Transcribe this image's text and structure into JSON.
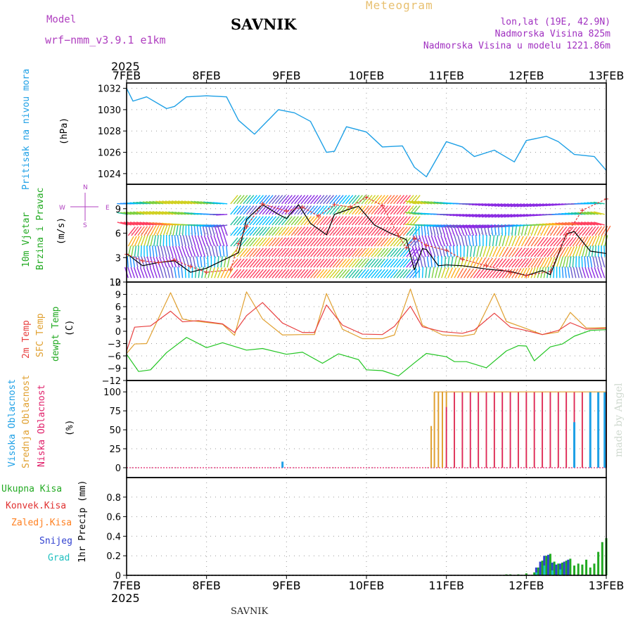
{
  "header": {
    "title": "SAVNIK",
    "meteogram": "Meteogram",
    "model_label": "Model",
    "model_name": "wrf−nmm_v3.9.1  e1km",
    "location": "lon,lat (19E, 42.9N)",
    "altitude": "Nadmorska Visina 825m",
    "model_altitude": "Nadmorska Visina u modelu 1221.86m"
  },
  "footer": {
    "title": "SAVNIK",
    "credit": "made by Angel"
  },
  "xaxis": {
    "year": "2025",
    "ticks": [
      "7FEB",
      "8FEB",
      "9FEB",
      "10FEB",
      "11FEB",
      "12FEB",
      "13FEB"
    ]
  },
  "colors": {
    "pressure": "#1ea0e6",
    "wind_speed": "#000000",
    "gust": "#e03030",
    "temp2m": "#e84040",
    "sfc_temp": "#e0a030",
    "dewpoint": "#22c522",
    "high_cloud": "#1ea0e6",
    "mid_cloud": "#e0a030",
    "low_cloud": "#e0206a",
    "total_precip": "#22aa22",
    "conv_precip": "#e03030",
    "freezing_precip": "#ff8020",
    "snow": "#3040d0",
    "graupel": "#20c0c0"
  },
  "panels": {
    "pressure": {
      "ylabel_a": "Pritisak na nivou mora",
      "ylabel_b": "(hPa)",
      "yticks": [
        "1024",
        "1026",
        "1028",
        "1030",
        "1032"
      ]
    },
    "wind": {
      "ylabel_a": "10m Vjetar",
      "ylabel_b": "Brzina i Pravac",
      "ylabel_c": "(m/s)",
      "yticks": [
        "0",
        "3",
        "6",
        "9"
      ],
      "compass": {
        "n": "N",
        "s": "S",
        "e": "E",
        "w": "W"
      }
    },
    "temp": {
      "ylabel_a": "2m Temp",
      "ylabel_b": "SFC Temp",
      "ylabel_c": "dewpt Temp",
      "ylabel_d": "(C)",
      "yticks": [
        "−12",
        "−9",
        "−6",
        "−3",
        "0",
        "3",
        "6",
        "9",
        "12"
      ]
    },
    "cloud": {
      "ylabel_a": "Visoka Oblacnost",
      "ylabel_b": "Srednja Oblacnost",
      "ylabel_c": "Niska Oblacnost",
      "ylabel_d": "(%)",
      "yticks": [
        "0",
        "25",
        "50",
        "75",
        "100"
      ]
    },
    "precip": {
      "legend": [
        "Ukupna Kisa",
        "Konvek.Kisa",
        "Zaledj.Kisa",
        "Snijeg",
        "Grad"
      ],
      "ylabel": "1hr Precip (mm)",
      "yticks": [
        "0",
        "0.2",
        "0.4",
        "0.6",
        "0.8"
      ]
    }
  },
  "chart_data": [
    {
      "type": "line",
      "title": "Pritisak na nivou mora",
      "ylabel": "(hPa)",
      "ylim": [
        1023,
        1032.5
      ],
      "x_units": "days since 7FEB 00h",
      "series": [
        {
          "name": "Pritisak na nivou mora",
          "x": [
            0,
            0.08,
            0.25,
            0.5,
            0.6,
            0.75,
            1.0,
            1.25,
            1.4,
            1.6,
            1.9,
            2.1,
            2.3,
            2.5,
            2.6,
            2.75,
            3.0,
            3.2,
            3.45,
            3.6,
            3.75,
            4.0,
            4.2,
            4.35,
            4.6,
            4.85,
            5.0,
            5.25,
            5.4,
            5.6,
            5.85,
            6.0
          ],
          "values": [
            1032,
            1030.8,
            1031.2,
            1030.1,
            1030.3,
            1031.2,
            1031.3,
            1031.2,
            1029,
            1027.7,
            1030,
            1029.7,
            1028.9,
            1026,
            1026.1,
            1028.4,
            1027.9,
            1026.5,
            1026.6,
            1024.6,
            1023.7,
            1027,
            1026.5,
            1025.6,
            1026.2,
            1025.1,
            1027.1,
            1027.5,
            1027,
            1025.8,
            1025.6,
            1024.3
          ]
        }
      ]
    },
    {
      "type": "line",
      "title": "10m Vjetar Brzina i Pravac",
      "ylabel": "(m/s)",
      "ylim": [
        0,
        12
      ],
      "x_units": "days since 7FEB 00h",
      "series": [
        {
          "name": "wind_speed",
          "x": [
            0,
            0.2,
            0.4,
            0.6,
            0.8,
            1.0,
            1.4,
            1.5,
            1.7,
            1.9,
            2.0,
            2.15,
            2.3,
            2.5,
            2.6,
            2.8,
            2.9,
            3.1,
            3.3,
            3.5,
            3.6,
            3.7,
            3.75,
            3.9,
            4.0,
            4.2,
            4.5,
            4.8,
            5.0,
            5.2,
            5.3,
            5.5,
            5.6,
            5.8,
            6.0
          ],
          "values": [
            3.5,
            2,
            2.4,
            2.6,
            1.2,
            1.7,
            3.6,
            7.7,
            9.5,
            8.3,
            7.8,
            9.5,
            7.2,
            5.8,
            8.3,
            9,
            9.3,
            7,
            6,
            5.2,
            1.5,
            4.1,
            4,
            2,
            2.1,
            2,
            1.6,
            1.3,
            0.8,
            1.4,
            0.9,
            5.9,
            6.2,
            3.8,
            3.5
          ]
        },
        {
          "name": "gust",
          "x": [
            0,
            0.2,
            0.4,
            0.6,
            0.8,
            1.0,
            1.3,
            1.4,
            1.5,
            1.7,
            2.0,
            2.2,
            2.4,
            2.6,
            2.8,
            3.0,
            3.2,
            3.4,
            3.5,
            3.6,
            3.75,
            4.0,
            4.2,
            4.5,
            4.8,
            5.0,
            5.3,
            5.5,
            5.7,
            6.0
          ],
          "values": [
            3.4,
            2.6,
            2.4,
            2.7,
            1.9,
            1.2,
            1.5,
            4.7,
            6.8,
            9.6,
            8.7,
            9.2,
            8.1,
            9.5,
            9.2,
            10.4,
            9.4,
            5.7,
            4.2,
            5.4,
            4.5,
            3.9,
            2.8,
            2,
            1.2,
            0.8,
            1.3,
            5.8,
            8.8,
            10.2
          ]
        }
      ]
    },
    {
      "type": "line",
      "title": "2m Temp / SFC Temp / dewpt Temp",
      "ylabel": "(C)",
      "ylim": [
        -12,
        12
      ],
      "x_units": "days since 7FEB 00h",
      "series": [
        {
          "name": "2m Temp",
          "x": [
            0,
            0.1,
            0.3,
            0.55,
            0.7,
            0.9,
            1.2,
            1.35,
            1.5,
            1.7,
            1.95,
            2.2,
            2.35,
            2.5,
            2.7,
            2.95,
            3.2,
            3.35,
            3.55,
            3.7,
            3.95,
            4.2,
            4.35,
            4.6,
            4.8,
            4.95,
            5.2,
            5.4,
            5.55,
            5.75,
            6.0
          ],
          "values": [
            -4.8,
            1,
            1.3,
            4.9,
            2.3,
            2.6,
            1.8,
            -0.3,
            3.8,
            7,
            2,
            -0.3,
            -0.3,
            6.4,
            1.5,
            -0.7,
            -0.8,
            1.2,
            6.1,
            1.1,
            -0.1,
            -0.5,
            0.3,
            4.4,
            1,
            0.4,
            -0.8,
            0.2,
            2.1,
            0.5,
            0.7
          ]
        },
        {
          "name": "SFC Temp",
          "x": [
            0,
            0.1,
            0.25,
            0.55,
            0.7,
            0.8,
            1.2,
            1.35,
            1.5,
            1.7,
            1.95,
            2.2,
            2.35,
            2.5,
            2.7,
            2.95,
            3.2,
            3.35,
            3.55,
            3.7,
            3.95,
            4.2,
            4.35,
            4.6,
            4.75,
            4.95,
            5.2,
            5.4,
            5.55,
            5.75,
            6.0
          ],
          "values": [
            -5.4,
            -3.1,
            -3,
            9.4,
            3,
            2.6,
            1.7,
            -1,
            9.6,
            3,
            -0.9,
            -0.8,
            -0.8,
            9.2,
            0.5,
            -1.8,
            -1.8,
            -0.9,
            10.3,
            1.5,
            -0.9,
            -1.2,
            -0.7,
            9.2,
            2.4,
            1,
            -0.8,
            -0.2,
            4.6,
            0.8,
            0.9
          ]
        },
        {
          "name": "dewpt Temp",
          "x": [
            0,
            0.15,
            0.3,
            0.5,
            0.75,
            1.0,
            1.2,
            1.5,
            1.7,
            2.0,
            2.2,
            2.45,
            2.65,
            2.9,
            3.0,
            3.2,
            3.4,
            3.6,
            3.75,
            4.0,
            4.1,
            4.25,
            4.5,
            4.75,
            4.9,
            5.0,
            5.1,
            5.3,
            5.45,
            5.6,
            5.8,
            6.0
          ],
          "values": [
            -5.6,
            -9.8,
            -9.4,
            -5.2,
            -1.5,
            -4,
            -2.8,
            -4.6,
            -4.2,
            -5.6,
            -5.1,
            -7.8,
            -5.5,
            -6.9,
            -9.4,
            -9.6,
            -10.9,
            -7.7,
            -5.4,
            -6.2,
            -7.4,
            -7.4,
            -8.9,
            -4.8,
            -3.5,
            -3.6,
            -7.2,
            -3.8,
            -3.1,
            -1.2,
            0.2,
            0.4
          ]
        }
      ]
    },
    {
      "type": "bar",
      "title": "Visoka / Srednja / Niska Oblacnost",
      "ylabel": "(%)",
      "ylim": [
        0,
        100
      ],
      "x_units": "days since 7FEB 00h",
      "notes_only_visual": "Many hourly bars near 100% after 10FEB 19h",
      "series": [
        {
          "name": "Visoka Oblacnost",
          "x": [
            1.95,
            5.6,
            5.8,
            5.9,
            5.98
          ],
          "values": [
            8,
            60,
            100,
            100,
            100
          ]
        },
        {
          "name": "Srednja Oblacnost",
          "x": [
            3.81,
            3.85,
            3.9,
            3.95,
            4.0,
            4.1,
            4.2,
            4.3,
            4.4,
            4.5,
            4.6,
            4.7,
            4.8,
            4.9,
            5.0,
            5.1,
            5.2,
            5.3,
            5.4,
            5.5,
            5.6,
            5.7,
            5.8,
            5.9,
            6.0
          ],
          "values": [
            55,
            100,
            100,
            100,
            100,
            100,
            100,
            100,
            100,
            100,
            100,
            100,
            100,
            100,
            100,
            100,
            100,
            100,
            100,
            100,
            100,
            100,
            100,
            100,
            100
          ]
        },
        {
          "name": "Niska Oblacnost",
          "x": [
            4.0,
            4.1,
            4.2,
            4.3,
            4.4,
            4.5,
            4.6,
            4.7,
            4.8,
            4.9,
            5.0,
            5.1,
            5.2,
            5.3,
            5.4,
            5.5,
            5.6,
            5.7,
            5.8,
            5.9,
            6.0
          ],
          "values": [
            80,
            100,
            100,
            100,
            100,
            100,
            100,
            100,
            100,
            100,
            100,
            100,
            100,
            100,
            100,
            100,
            100,
            100,
            100,
            100,
            100
          ]
        }
      ]
    },
    {
      "type": "bar",
      "title": "1hr Precip",
      "ylabel": "1hr Precip (mm)",
      "ylim": [
        0,
        1.0
      ],
      "x_units": "days since 7FEB 00h",
      "series": [
        {
          "name": "Ukupna Kisa",
          "x": [
            4.75,
            4.8,
            4.9,
            5.0,
            5.1,
            5.15,
            5.2,
            5.25,
            5.3,
            5.35,
            5.4,
            5.45,
            5.5,
            5.55,
            5.6,
            5.65,
            5.7,
            5.75,
            5.8,
            5.85,
            5.9,
            5.95,
            6.0
          ],
          "values": [
            0.01,
            0.01,
            0.01,
            0.02,
            0.03,
            0.08,
            0.15,
            0.2,
            0.22,
            0.14,
            0.12,
            0.13,
            0.15,
            0.17,
            0.1,
            0.12,
            0.11,
            0.16,
            0.08,
            0.12,
            0.24,
            0.34,
            0.38
          ]
        },
        {
          "name": "Snijeg",
          "x": [
            5.15,
            5.2,
            5.25,
            5.3,
            5.35,
            5.4,
            5.45,
            5.5,
            5.55
          ],
          "values": [
            0.08,
            0.14,
            0.2,
            0.21,
            0.13,
            0.11,
            0.12,
            0.14,
            0.16
          ]
        },
        {
          "name": "Grad",
          "x": [
            5.1,
            5.2,
            5.3,
            5.4
          ],
          "values": [
            0.03,
            0.1,
            0.05,
            0.06
          ]
        }
      ]
    }
  ]
}
